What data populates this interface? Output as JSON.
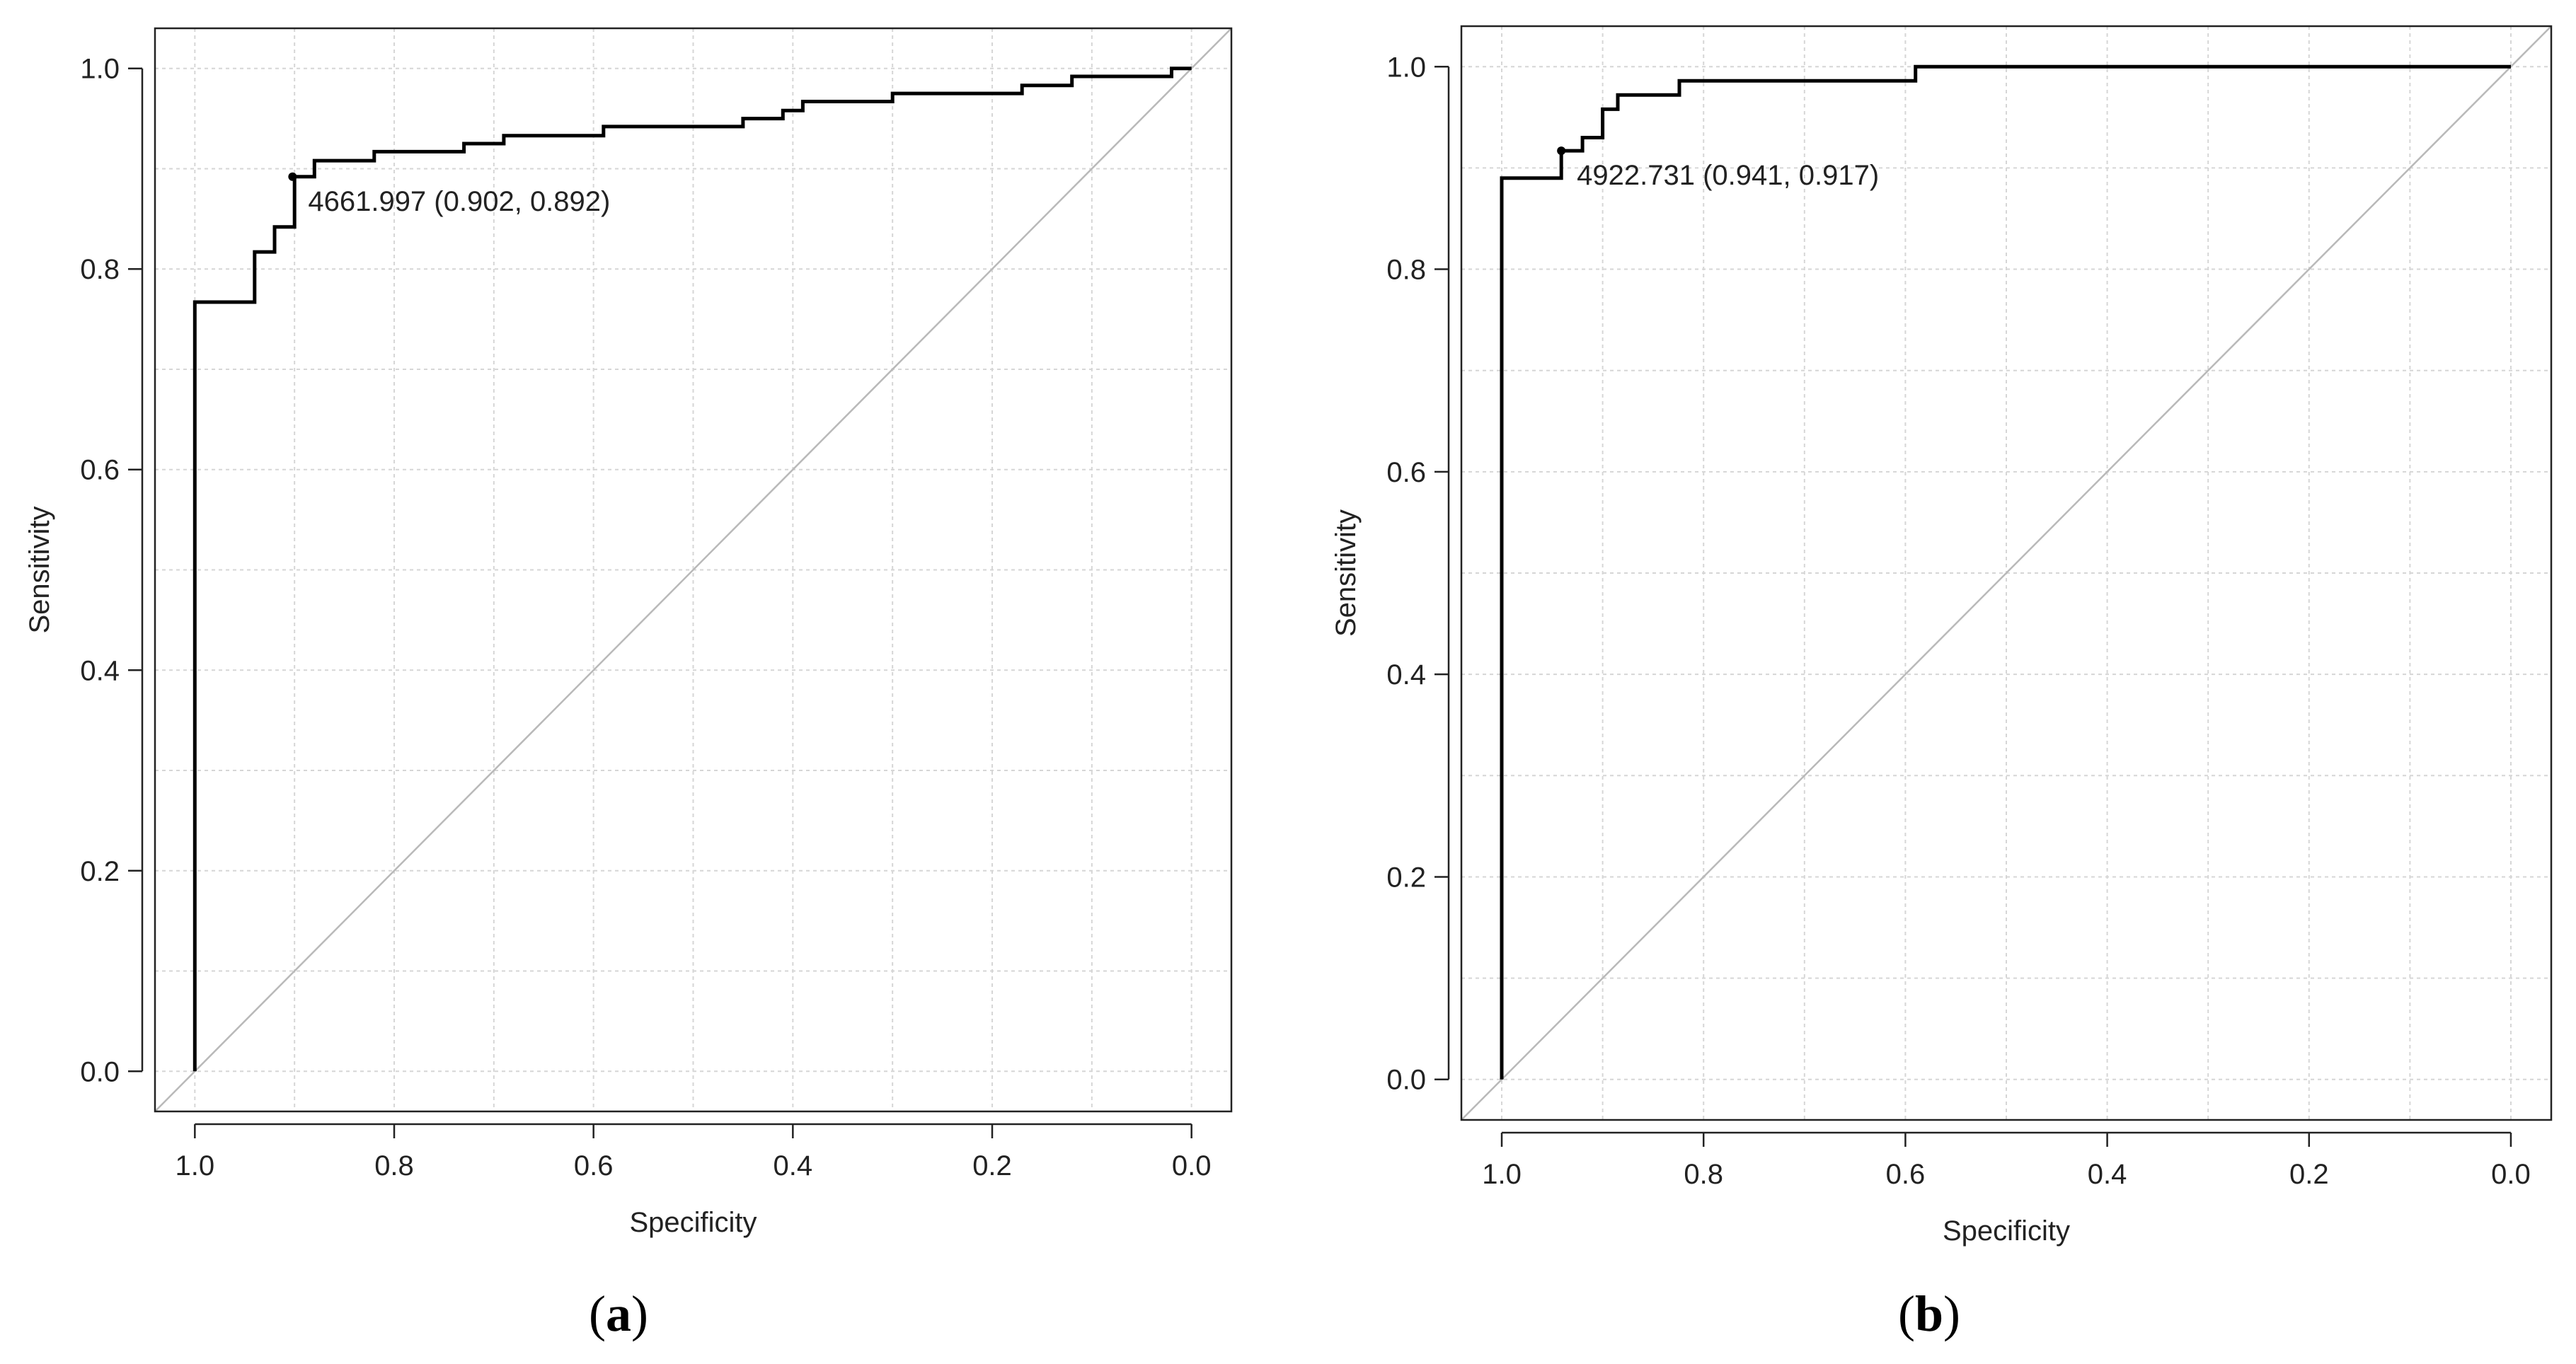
{
  "chart_data": [
    {
      "panel_label": "a",
      "type": "line",
      "xlabel": "Specificity",
      "ylabel": "Sensitivity",
      "xlim": [
        1.04,
        -0.04
      ],
      "ylim": [
        -0.04,
        1.04
      ],
      "xticks": [
        1.0,
        0.8,
        0.6,
        0.4,
        0.2,
        0.0
      ],
      "xtick_labels": [
        "1.0",
        "0.8",
        "0.6",
        "0.4",
        "0.2",
        "0.0"
      ],
      "yticks": [
        0.0,
        0.2,
        0.4,
        0.6,
        0.8,
        1.0
      ],
      "ytick_labels": [
        "0.0",
        "0.2",
        "0.4",
        "0.6",
        "0.8",
        "1.0"
      ],
      "grid": true,
      "reference_line": "diagonal",
      "roc": {
        "specificity": [
          1.0,
          1.0,
          0.94,
          0.94,
          0.92,
          0.92,
          0.9,
          0.9,
          0.88,
          0.88,
          0.82,
          0.82,
          0.73,
          0.73,
          0.69,
          0.69,
          0.59,
          0.59,
          0.45,
          0.45,
          0.41,
          0.41,
          0.39,
          0.39,
          0.3,
          0.3,
          0.17,
          0.17,
          0.12,
          0.12,
          0.02,
          0.02,
          0.0
        ],
        "sensitivity": [
          0.0,
          0.767,
          0.767,
          0.817,
          0.817,
          0.842,
          0.842,
          0.892,
          0.892,
          0.908,
          0.908,
          0.917,
          0.917,
          0.925,
          0.925,
          0.933,
          0.933,
          0.942,
          0.942,
          0.95,
          0.95,
          0.958,
          0.958,
          0.967,
          0.967,
          0.975,
          0.975,
          0.983,
          0.983,
          0.992,
          0.992,
          1.0,
          1.0
        ]
      },
      "optimal_point": {
        "specificity": 0.902,
        "sensitivity": 0.892
      },
      "annotation": "4661.997 (0.902, 0.892)"
    },
    {
      "panel_label": "b",
      "type": "line",
      "xlabel": "Specificity",
      "ylabel": "Sensitivity",
      "xlim": [
        1.04,
        -0.04
      ],
      "ylim": [
        -0.04,
        1.04
      ],
      "xticks": [
        1.0,
        0.8,
        0.6,
        0.4,
        0.2,
        0.0
      ],
      "xtick_labels": [
        "1.0",
        "0.8",
        "0.6",
        "0.4",
        "0.2",
        "0.0"
      ],
      "yticks": [
        0.0,
        0.2,
        0.4,
        0.6,
        0.8,
        1.0
      ],
      "ytick_labels": [
        "0.0",
        "0.2",
        "0.4",
        "0.6",
        "0.8",
        "1.0"
      ],
      "grid": true,
      "reference_line": "diagonal",
      "roc": {
        "specificity": [
          1.0,
          1.0,
          0.941,
          0.941,
          0.92,
          0.92,
          0.9,
          0.9,
          0.885,
          0.885,
          0.87,
          0.87,
          0.824,
          0.824,
          0.59,
          0.59,
          0.0
        ],
        "sensitivity": [
          0.0,
          0.89,
          0.89,
          0.917,
          0.917,
          0.93,
          0.93,
          0.958,
          0.958,
          0.972,
          0.972,
          0.972,
          0.972,
          0.986,
          0.986,
          1.0,
          1.0
        ]
      },
      "optimal_point": {
        "specificity": 0.941,
        "sensitivity": 0.917
      },
      "annotation": "4922.731 (0.941, 0.917)"
    }
  ],
  "captions": [
    {
      "open": "(",
      "label": "a",
      "close": ")"
    },
    {
      "open": "(",
      "label": "b",
      "close": ")"
    }
  ]
}
